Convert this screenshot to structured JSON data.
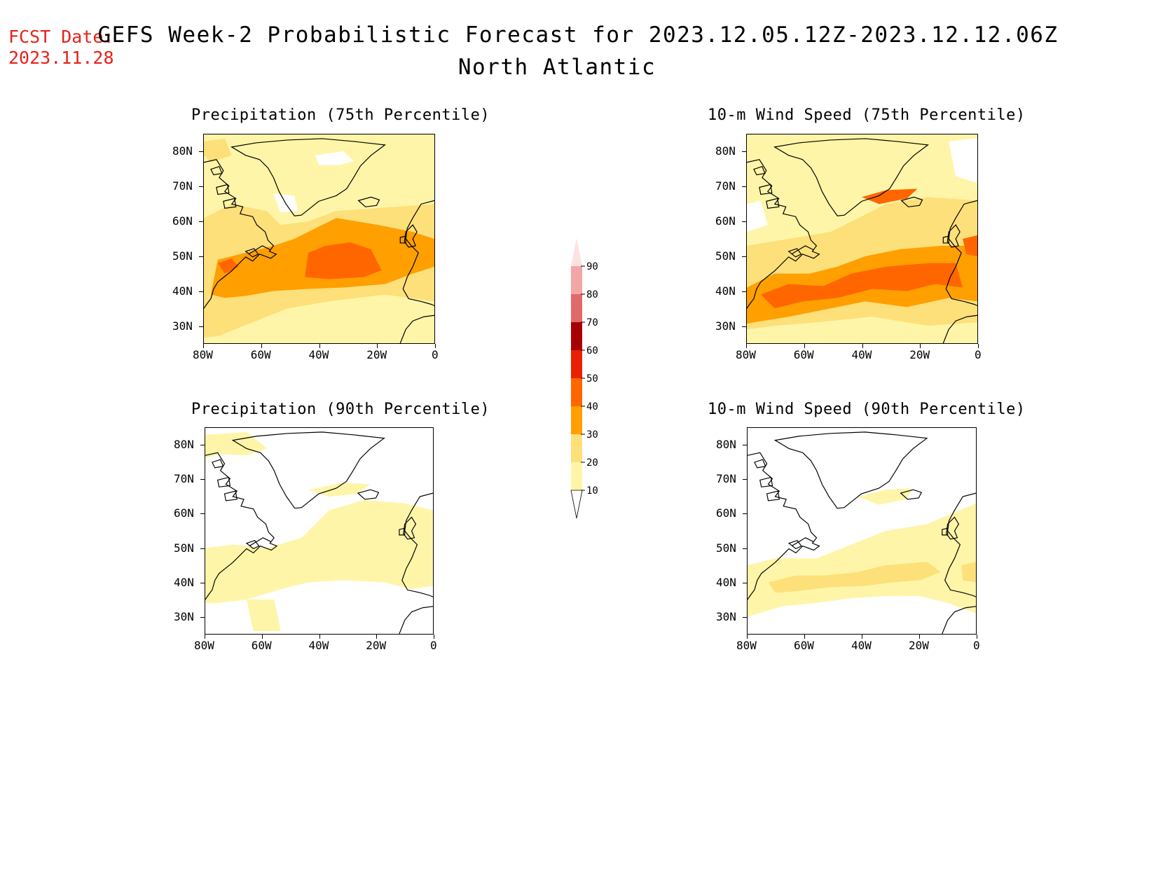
{
  "header": {
    "fcst_label": "FCST Date:",
    "fcst_date": "2023.11.28",
    "title": "GEFS Week-2 Probabilistic Forecast for 2023.12.05.12Z-2023.12.12.06Z",
    "subtitle": "North Atlantic"
  },
  "panels": [
    {
      "id": "precip75",
      "title": "Precipitation (75th Percentile)"
    },
    {
      "id": "wind75",
      "title": "10-m Wind Speed (75th Percentile)"
    },
    {
      "id": "precip90",
      "title": "Precipitation (90th Percentile)"
    },
    {
      "id": "wind90",
      "title": "10-m Wind Speed (90th Percentile)"
    }
  ],
  "axes": {
    "lat_labels": [
      "80N",
      "70N",
      "60N",
      "50N",
      "40N",
      "30N"
    ],
    "lon_labels": [
      "80W",
      "60W",
      "40W",
      "20W",
      "0"
    ]
  },
  "colorbar": {
    "levels": [
      "10",
      "20",
      "30",
      "40",
      "50",
      "60",
      "70",
      "80",
      "90"
    ],
    "colors": [
      "#fff5a8",
      "#fde07a",
      "#ff9f00",
      "#ff6600",
      "#e82000",
      "#a80000",
      "#e06a6a",
      "#f4a6a6",
      "#fde2e2"
    ]
  }
}
